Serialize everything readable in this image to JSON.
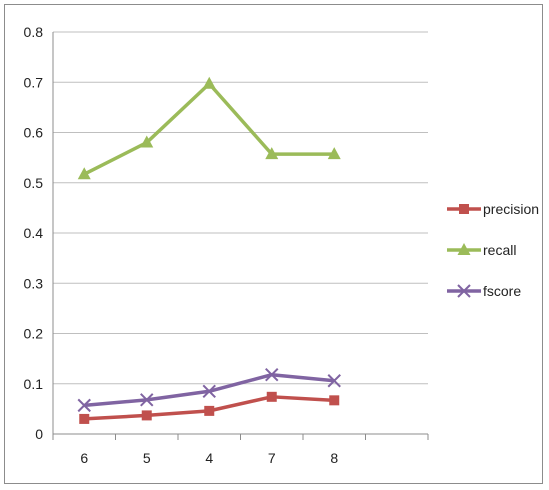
{
  "chart_data": {
    "type": "line",
    "categories": [
      "6",
      "5",
      "4",
      "7",
      "8"
    ],
    "ylim": [
      0,
      0.8
    ],
    "yticks": [
      "0",
      "0.1",
      "0.2",
      "0.3",
      "0.4",
      "0.5",
      "0.6",
      "0.7",
      "0.8"
    ],
    "grid": true,
    "legend_position": "right",
    "series": [
      {
        "name": "precision",
        "values": [
          0.03,
          0.037,
          0.046,
          0.074,
          0.067
        ],
        "color": "#c0504d",
        "marker": "square"
      },
      {
        "name": "recall",
        "values": [
          0.517,
          0.58,
          0.697,
          0.557,
          0.557
        ],
        "color": "#9bbb59",
        "marker": "triangle"
      },
      {
        "name": "fscore",
        "values": [
          0.057,
          0.068,
          0.085,
          0.118,
          0.106
        ],
        "color": "#8064a2",
        "marker": "x"
      }
    ]
  }
}
